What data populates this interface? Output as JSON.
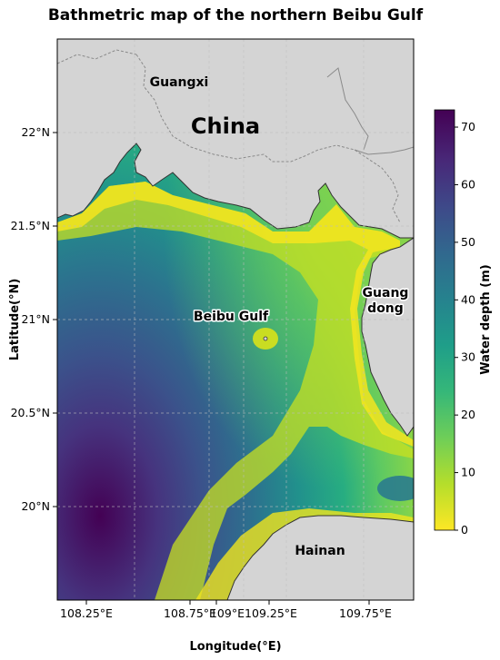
{
  "title": "Bathmetric map of the northern Beibu Gulf",
  "xlabel": "Longitude(°E)",
  "ylabel": "Latitude(°N)",
  "x_ticks": [
    "108.25°E",
    "108.75°E",
    "109°E",
    "109.25°E",
    "109.75°E"
  ],
  "y_ticks": [
    "22°N",
    "21.5°N",
    "21°N",
    "20.5°N",
    "20°N"
  ],
  "places": {
    "guangxi": "Guangxi",
    "china": "China",
    "beibu_gulf": "Beibu Gulf",
    "guangdong_line1": "Guang",
    "guangdong_line2": "dong",
    "hainan": "Hainan"
  },
  "colorbar": {
    "label": "Water depth (m)",
    "ticks": [
      "0",
      "10",
      "20",
      "30",
      "40",
      "50",
      "60",
      "70"
    ],
    "min": 0,
    "max": 73,
    "colormap": "viridis_r",
    "colors": [
      "#fde725",
      "#b5de2b",
      "#6ece58",
      "#35b779",
      "#1f9e89",
      "#26828e",
      "#31688e",
      "#3e4989",
      "#482878",
      "#440154"
    ]
  },
  "colors": {
    "land": "#d4d4d4",
    "coastline": "#333333",
    "border": "#8a8a8a",
    "grid": "#bdbdbd"
  }
}
